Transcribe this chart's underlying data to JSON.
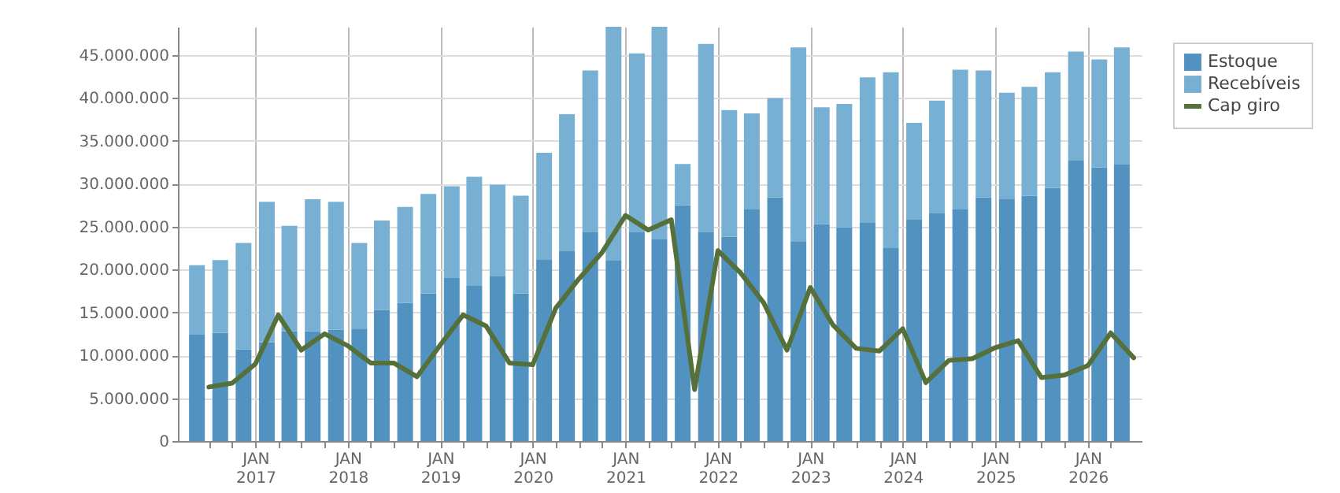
{
  "chart_data": {
    "type": "bar",
    "stacked": true,
    "grid": true,
    "legend": "top right",
    "x": [
      "2016-05-15",
      "2016-08-15",
      "2016-11-15",
      "2017-02-15",
      "2017-05-15",
      "2017-08-15",
      "2017-11-15",
      "2018-02-15",
      "2018-05-15",
      "2018-08-15",
      "2018-11-15",
      "2019-02-15",
      "2019-05-15",
      "2019-08-15",
      "2019-11-15",
      "2020-02-15",
      "2020-05-15",
      "2020-08-15",
      "2020-11-15",
      "2021-02-15",
      "2021-05-15",
      "2021-08-15",
      "2021-11-15",
      "2022-02-15",
      "2022-05-15",
      "2022-08-15",
      "2022-11-15",
      "2023-02-15",
      "2023-05-15",
      "2023-08-15",
      "2023-11-15",
      "2024-02-15",
      "2024-05-15",
      "2024-08-15",
      "2024-11-15",
      "2025-02-15",
      "2025-05-15",
      "2025-08-15",
      "2025-11-15",
      "2026-02-15",
      "2026-05-15"
    ],
    "series": [
      {
        "name": "Estoque",
        "color": "#5192c0",
        "values": [
          12400000,
          12600000,
          10700000,
          11500000,
          12800000,
          12800000,
          13000000,
          13100000,
          15300000,
          16100000,
          17200000,
          19000000,
          18100000,
          19200000,
          17200000,
          21200000,
          22200000,
          24400000,
          21100000,
          24400000,
          23500000,
          27500000,
          24400000,
          23800000,
          27000000,
          28400000,
          23300000,
          25300000,
          24900000,
          25500000,
          22500000,
          25800000,
          26600000,
          27000000,
          28400000,
          28200000,
          28600000,
          29500000,
          32700000,
          31900000,
          32300000
        ]
      },
      {
        "name": "Recebíveis",
        "color": "#77b0d2",
        "values": [
          8100000,
          8500000,
          12400000,
          16400000,
          12300000,
          15400000,
          14900000,
          10000000,
          10400000,
          11200000,
          11600000,
          10700000,
          12700000,
          10700000,
          11400000,
          12400000,
          15900000,
          18800000,
          27200000,
          20800000,
          24800000,
          4800000,
          21900000,
          14800000,
          11200000,
          11600000,
          22600000,
          13600000,
          14400000,
          16900000,
          20500000,
          11300000,
          13100000,
          16300000,
          14800000,
          12400000,
          12700000,
          13500000,
          12700000,
          12600000,
          13600000
        ]
      },
      {
        "name": "Cap giro",
        "type": "line",
        "color": "#55703a",
        "line_style": "solid",
        "x": [
          "2016-07",
          "2016-10",
          "2017-01",
          "2017-04",
          "2017-07",
          "2017-10",
          "2018-01",
          "2018-04",
          "2018-07",
          "2018-10",
          "2019-01",
          "2019-04",
          "2019-07",
          "2019-10",
          "2020-01",
          "2020-04",
          "2020-07",
          "2020-10",
          "2021-01",
          "2021-04",
          "2021-07",
          "2021-10",
          "2022-01",
          "2022-04",
          "2022-07",
          "2022-10",
          "2023-01",
          "2023-04",
          "2023-07",
          "2023-10",
          "2024-01",
          "2024-04",
          "2024-07",
          "2024-10",
          "2025-01",
          "2025-04",
          "2025-07",
          "2025-10",
          "2026-01",
          "2026-04",
          "2026-07"
        ],
        "values": [
          6300000,
          6750000,
          9000000,
          14700000,
          10600000,
          12500000,
          11100000,
          9100000,
          9100000,
          7500000,
          11200000,
          14700000,
          13400000,
          9100000,
          8900000,
          15500000,
          18900000,
          22000000,
          26300000,
          24600000,
          25800000,
          6000000,
          22200000,
          19600000,
          16100000,
          10600000,
          17900000,
          13500000,
          10800000,
          10500000,
          13100000,
          6800000,
          9400000,
          9600000,
          10900000,
          11700000,
          7400000,
          7700000,
          8800000,
          12600000,
          9700000
        ]
      }
    ],
    "xlim": [
      "2016-04",
      "2026-07"
    ],
    "xticks": [
      {
        "value": "2016-07",
        "label": null
      },
      {
        "value": "2016-10",
        "label": null
      },
      {
        "value": "2017-01",
        "label": "JAN 2017"
      },
      {
        "value": "2017-04",
        "label": null
      },
      {
        "value": "2017-07",
        "label": null
      },
      {
        "value": "2017-10",
        "label": null
      },
      {
        "value": "2018-01",
        "label": "JAN 2018"
      },
      {
        "value": "2018-04",
        "label": null
      },
      {
        "value": "2018-07",
        "label": null
      },
      {
        "value": "2018-10",
        "label": null
      },
      {
        "value": "2019-01",
        "label": "JAN 2019"
      },
      {
        "value": "2019-04",
        "label": null
      },
      {
        "value": "2019-07",
        "label": null
      },
      {
        "value": "2019-10",
        "label": null
      },
      {
        "value": "2020-01",
        "label": "JAN 2020"
      },
      {
        "value": "2020-04",
        "label": null
      },
      {
        "value": "2020-07",
        "label": null
      },
      {
        "value": "2020-10",
        "label": null
      },
      {
        "value": "2021-01",
        "label": "JAN 2021"
      },
      {
        "value": "2021-04",
        "label": null
      },
      {
        "value": "2021-07",
        "label": null
      },
      {
        "value": "2021-10",
        "label": null
      },
      {
        "value": "2022-01",
        "label": "JAN 2022"
      },
      {
        "value": "2022-04",
        "label": null
      },
      {
        "value": "2022-07",
        "label": null
      },
      {
        "value": "2022-10",
        "label": null
      },
      {
        "value": "2023-01",
        "label": "JAN 2023"
      },
      {
        "value": "2023-04",
        "label": null
      },
      {
        "value": "2023-07",
        "label": null
      },
      {
        "value": "2023-10",
        "label": null
      },
      {
        "value": "2024-01",
        "label": "JAN 2024"
      },
      {
        "value": "2024-04",
        "label": null
      },
      {
        "value": "2024-07",
        "label": null
      },
      {
        "value": "2024-10",
        "label": null
      },
      {
        "value": "2025-01",
        "label": "JAN 2025"
      },
      {
        "value": "2025-04",
        "label": null
      },
      {
        "value": "2025-07",
        "label": null
      },
      {
        "value": "2025-10",
        "label": null
      },
      {
        "value": "2026-01",
        "label": "JAN 2026"
      },
      {
        "value": "2026-04",
        "label": null
      }
    ],
    "ylim": [
      0,
      48300000
    ],
    "yticks": [
      {
        "value": 0,
        "label": "0"
      },
      {
        "value": 5000000,
        "label": "5.000.000"
      },
      {
        "value": 10000000,
        "label": "10.000.000"
      },
      {
        "value": 15000000,
        "label": "15.000.000"
      },
      {
        "value": 20000000,
        "label": "20.000.000"
      },
      {
        "value": 25000000,
        "label": "25.000.000"
      },
      {
        "value": 30000000,
        "label": "30.000.000"
      },
      {
        "value": 35000000,
        "label": "35.000.000"
      },
      {
        "value": 40000000,
        "label": "40.000.000"
      },
      {
        "value": 45000000,
        "label": "45.000.000"
      }
    ]
  }
}
